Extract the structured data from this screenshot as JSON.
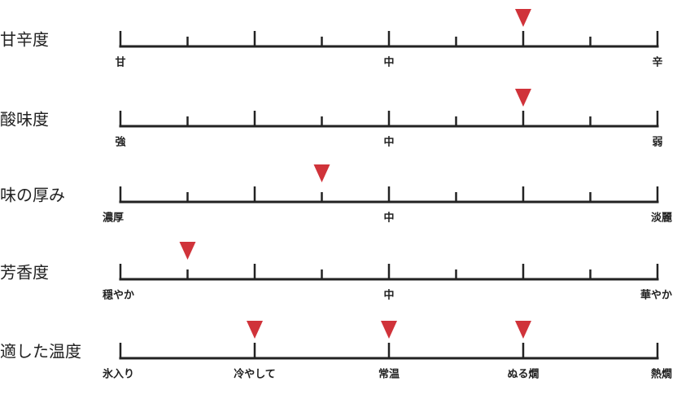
{
  "rows": [
    {
      "label": "甘辛度",
      "ticks": [
        "甘",
        null,
        null,
        null,
        "中",
        null,
        null,
        null,
        "辛"
      ],
      "markers": [
        6
      ]
    },
    {
      "label": "酸味度",
      "ticks": [
        "強",
        null,
        null,
        null,
        "中",
        null,
        null,
        null,
        "弱"
      ],
      "markers": [
        6
      ]
    },
    {
      "label": "味の厚み",
      "ticks": [
        "濃厚",
        null,
        null,
        null,
        "中",
        null,
        null,
        null,
        "淡麗"
      ],
      "markers": [
        3
      ]
    },
    {
      "label": "芳香度",
      "ticks": [
        "穏やか",
        null,
        null,
        null,
        "中",
        null,
        null,
        null,
        "華やか"
      ],
      "markers": [
        1
      ]
    },
    {
      "label": "適した温度",
      "ticks": [
        "氷入り",
        "冷やして",
        "常温",
        "ぬる燗",
        "熱燗"
      ],
      "markers": [
        1,
        2,
        3
      ]
    }
  ]
}
